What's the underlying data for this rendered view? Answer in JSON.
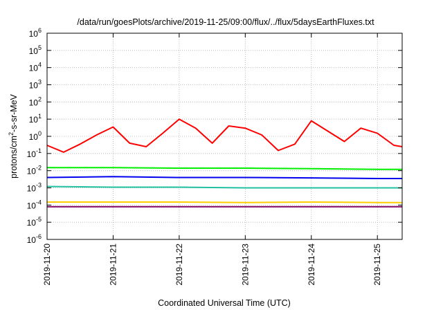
{
  "chart_data": {
    "type": "line",
    "title": "/data/run/goesPlots/archive/2019-11-25/09:00/flux/../flux/5daysEarthFluxes.txt",
    "xlabel": "Coordinated Universal Time (UTC)",
    "ylabel_parts": [
      "protons/cm",
      "2",
      "-s-sr-MeV"
    ],
    "y_scale": "log",
    "ylim": [
      1e-06,
      1000000.0
    ],
    "y_ticks": [
      {
        "base": "10",
        "exp": "-6",
        "value": 1e-06
      },
      {
        "base": "10",
        "exp": "-5",
        "value": 1e-05
      },
      {
        "base": "10",
        "exp": "-4",
        "value": 0.0001
      },
      {
        "base": "10",
        "exp": "-3",
        "value": 0.001
      },
      {
        "base": "10",
        "exp": "-2",
        "value": 0.01
      },
      {
        "base": "10",
        "exp": "-1",
        "value": 0.1
      },
      {
        "base": "10",
        "exp": "0",
        "value": 1
      },
      {
        "base": "10",
        "exp": "1",
        "value": 10
      },
      {
        "base": "10",
        "exp": "2",
        "value": 100
      },
      {
        "base": "10",
        "exp": "3",
        "value": 1000
      },
      {
        "base": "10",
        "exp": "4",
        "value": 10000
      },
      {
        "base": "10",
        "exp": "5",
        "value": 100000
      },
      {
        "base": "10",
        "exp": "6",
        "value": 1000000
      }
    ],
    "xlim": [
      "2019-11-20T00:00",
      "2019-11-25T09:00"
    ],
    "x_ticks": [
      "2019-11-20",
      "2019-11-21",
      "2019-11-22",
      "2019-11-23",
      "2019-11-24",
      "2019-11-25"
    ],
    "grid": true,
    "legend": "none",
    "series": [
      {
        "color": "#ff0000",
        "x": [
          "2019-11-20T00:00",
          "2019-11-20T06:00",
          "2019-11-20T12:00",
          "2019-11-20T18:00",
          "2019-11-21T00:00",
          "2019-11-21T06:00",
          "2019-11-21T12:00",
          "2019-11-21T18:00",
          "2019-11-22T00:00",
          "2019-11-22T06:00",
          "2019-11-22T12:00",
          "2019-11-22T18:00",
          "2019-11-23T00:00",
          "2019-11-23T06:00",
          "2019-11-23T12:00",
          "2019-11-23T18:00",
          "2019-11-24T00:00",
          "2019-11-24T06:00",
          "2019-11-24T12:00",
          "2019-11-24T18:00",
          "2019-11-25T00:00",
          "2019-11-25T06:00",
          "2019-11-25T09:00"
        ],
        "values": [
          0.3,
          0.12,
          0.35,
          1.2,
          3.5,
          0.4,
          0.25,
          1.5,
          10,
          3,
          0.4,
          4,
          3,
          1.2,
          0.15,
          0.35,
          8,
          2,
          0.5,
          3,
          1.5,
          0.3,
          0.25
        ]
      },
      {
        "color": "#00ee00",
        "x": [
          "2019-11-20T00:00",
          "2019-11-21T00:00",
          "2019-11-22T00:00",
          "2019-11-23T00:00",
          "2019-11-24T00:00",
          "2019-11-25T00:00",
          "2019-11-25T09:00"
        ],
        "values": [
          0.015,
          0.015,
          0.014,
          0.014,
          0.013,
          0.012,
          0.012
        ]
      },
      {
        "color": "#0000ee",
        "x": [
          "2019-11-20T00:00",
          "2019-11-21T00:00",
          "2019-11-22T00:00",
          "2019-11-23T00:00",
          "2019-11-24T00:00",
          "2019-11-25T00:00",
          "2019-11-25T09:00"
        ],
        "values": [
          0.004,
          0.0045,
          0.004,
          0.004,
          0.0038,
          0.0035,
          0.0035
        ]
      },
      {
        "color": "#20c0a0",
        "x": [
          "2019-11-20T00:00",
          "2019-11-21T00:00",
          "2019-11-22T00:00",
          "2019-11-23T00:00",
          "2019-11-24T00:00",
          "2019-11-25T00:00",
          "2019-11-25T09:00"
        ],
        "values": [
          0.0012,
          0.0011,
          0.0011,
          0.001,
          0.001,
          0.001,
          0.001
        ]
      },
      {
        "color": "#ffcc00",
        "x": [
          "2019-11-20T00:00",
          "2019-11-21T00:00",
          "2019-11-22T00:00",
          "2019-11-23T00:00",
          "2019-11-24T00:00",
          "2019-11-25T00:00",
          "2019-11-25T09:00"
        ],
        "values": [
          0.00015,
          0.00015,
          0.00015,
          0.00014,
          0.00015,
          0.00014,
          0.00014
        ]
      },
      {
        "color": "#800060",
        "x": [
          "2019-11-20T00:00",
          "2019-11-21T00:00",
          "2019-11-22T00:00",
          "2019-11-23T00:00",
          "2019-11-24T00:00",
          "2019-11-25T00:00",
          "2019-11-25T09:00"
        ],
        "values": [
          8e-05,
          8e-05,
          8e-05,
          8e-05,
          8e-05,
          8e-05,
          8e-05
        ]
      }
    ]
  }
}
